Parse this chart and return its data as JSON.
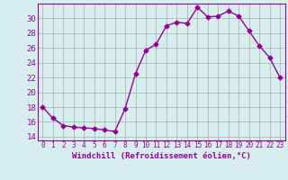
{
  "x": [
    0,
    1,
    2,
    3,
    4,
    5,
    6,
    7,
    8,
    9,
    10,
    11,
    12,
    13,
    14,
    15,
    16,
    17,
    18,
    19,
    20,
    21,
    22,
    23
  ],
  "y": [
    18.0,
    16.5,
    15.5,
    15.3,
    15.2,
    15.1,
    14.9,
    14.7,
    17.8,
    22.5,
    25.7,
    26.5,
    29.0,
    29.5,
    29.3,
    31.5,
    30.2,
    30.3,
    31.0,
    30.3,
    28.3,
    26.3,
    24.7,
    22.0
  ],
  "line_color": "#990099",
  "marker": "D",
  "marker_size": 2.5,
  "line_width": 1.0,
  "bg_color": "#d6eeee",
  "grid_color": "#aaaaaa",
  "xlabel": "Windchill (Refroidissement éolien,°C)",
  "xlabel_fontsize": 6.5,
  "ylabel_ticks": [
    14,
    16,
    18,
    20,
    22,
    24,
    26,
    28,
    30
  ],
  "ytick_fontsize": 6.5,
  "xtick_fontsize": 5.5,
  "ylim": [
    13.5,
    32.0
  ],
  "xlim": [
    -0.5,
    23.5
  ]
}
